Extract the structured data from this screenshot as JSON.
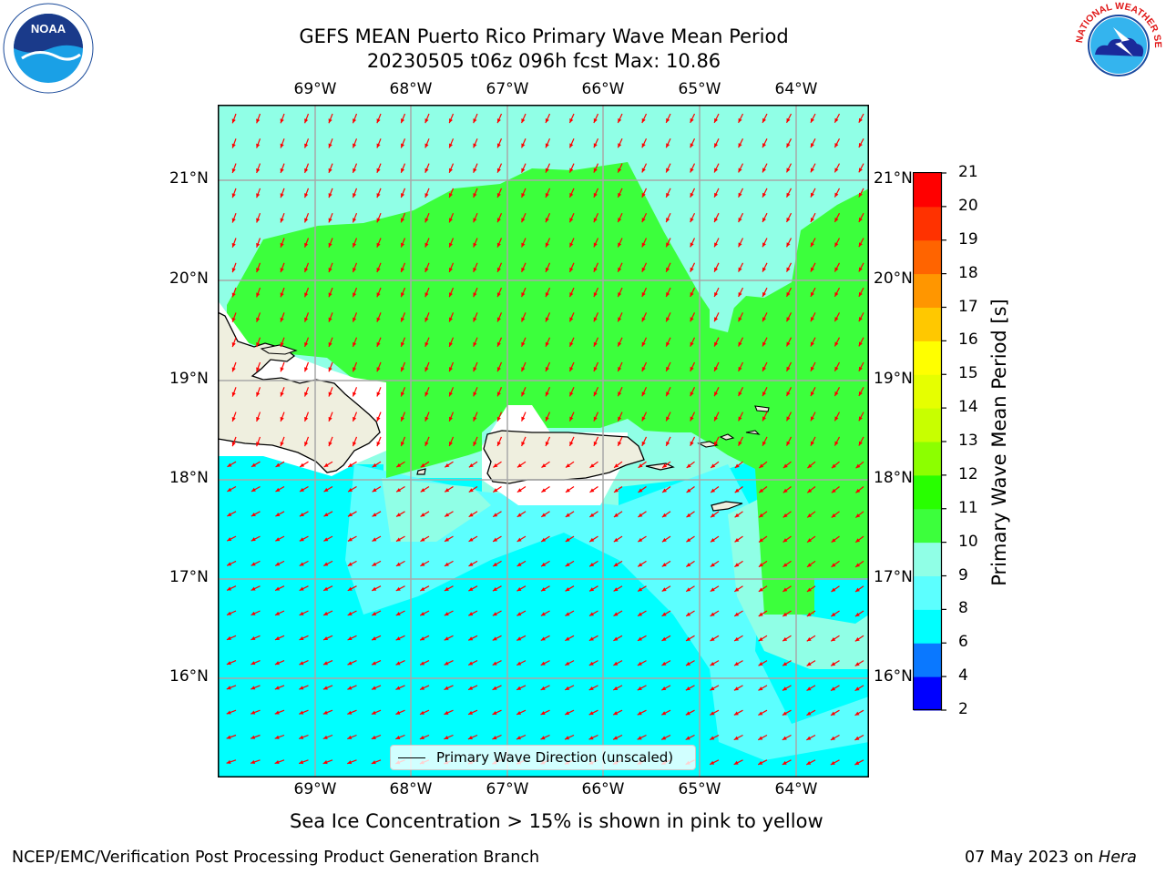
{
  "header": {
    "title_line1": "GEFS MEAN Puerto Rico Primary Wave Mean Period",
    "title_line2": "20230505 t06z 096h fcst   Max: 10.86"
  },
  "logos": {
    "noaa_text": "NOAA",
    "nws_text": "NATIONAL WEATHER SERVICE"
  },
  "map": {
    "lon_labels": [
      "69°W",
      "68°W",
      "67°W",
      "66°W",
      "65°W",
      "64°W"
    ],
    "lat_labels": [
      "21°N",
      "20°N",
      "19°N",
      "18°N",
      "17°N",
      "16°N"
    ],
    "legend_label": "Primary Wave Direction (unscaled)"
  },
  "colorbar": {
    "label": "Primary Wave Mean Period [s]",
    "ticks": [
      "2",
      "4",
      "6",
      "8",
      "9",
      "10",
      "11",
      "12",
      "13",
      "14",
      "15",
      "16",
      "17",
      "18",
      "19",
      "20",
      "21"
    ],
    "colors": [
      "#0000ff",
      "#0a78ff",
      "#00ffff",
      "#5cffff",
      "#90ffe6",
      "#3cff3c",
      "#28ff00",
      "#8cff00",
      "#c8ff00",
      "#e6ff00",
      "#ffff00",
      "#ffc800",
      "#ff9600",
      "#ff6400",
      "#ff3200",
      "#ff0000"
    ]
  },
  "notes": {
    "sea_ice": "Sea Ice Concentration > 15% is shown in pink to yellow"
  },
  "footer": {
    "left": "NCEP/EMC/Verification Post Processing Product Generation Branch",
    "right_prefix": "07 May 2023 on ",
    "right_machine": "Hera"
  },
  "palette": {
    "green": "#3cff3c",
    "aqua": "#90ffe6",
    "cyan": "#00ffff",
    "cyan_light": "#5cffff",
    "land": "#efefdf",
    "arrow": "#ff0000"
  }
}
